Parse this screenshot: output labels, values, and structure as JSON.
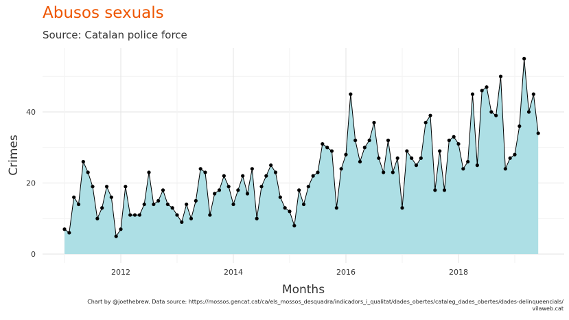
{
  "chart_data": {
    "type": "area",
    "title": "Abusos sexuals",
    "subtitle": "Source: Catalan police force",
    "xlabel": "Months",
    "ylabel": "Crimes",
    "caption_line1": "Chart by @joethebrew. Data source: https://mossos.gencat.cat/ca/els_mossos_desquadra/indicadors_i_qualitat/dades_obertes/cataleg_dades_obertes/dades-delinqueencials/",
    "caption_line2": "vilaweb.cat",
    "x_start": "2011-01",
    "x_end": "2019-06",
    "x_ticks": [
      "2012",
      "2014",
      "2016",
      "2018"
    ],
    "y_ticks": [
      "0",
      "20",
      "40"
    ],
    "ylim": [
      0,
      57
    ],
    "grid": true,
    "fill_color": "#addfe5",
    "line_color": "#000000",
    "values": [
      7,
      6,
      16,
      14,
      26,
      23,
      19,
      10,
      13,
      19,
      16,
      5,
      7,
      19,
      11,
      11,
      11,
      14,
      23,
      14,
      15,
      18,
      14,
      13,
      11,
      9,
      14,
      10,
      15,
      24,
      23,
      11,
      17,
      18,
      22,
      19,
      14,
      18,
      22,
      17,
      24,
      10,
      19,
      22,
      25,
      23,
      16,
      13,
      12,
      8,
      18,
      14,
      19,
      22,
      23,
      31,
      30,
      29,
      13,
      24,
      28,
      45,
      32,
      26,
      30,
      32,
      37,
      27,
      23,
      32,
      23,
      27,
      13,
      29,
      27,
      25,
      27,
      37,
      39,
      18,
      29,
      18,
      32,
      33,
      31,
      24,
      26,
      45,
      25,
      46,
      47,
      40,
      39,
      50,
      24,
      27,
      28,
      36,
      55,
      40,
      45,
      34
    ]
  }
}
